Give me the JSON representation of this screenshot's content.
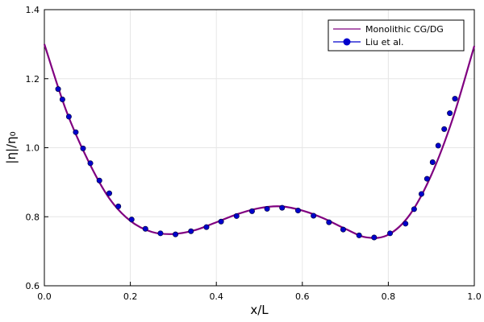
{
  "chart_data": {
    "type": "line",
    "xlabel": "x/L",
    "ylabel": "|η|/η₀",
    "xlim": [
      0,
      1
    ],
    "ylim": [
      0.6,
      1.4
    ],
    "xticks": [
      0.0,
      0.2,
      0.4,
      0.6,
      0.8,
      1.0
    ],
    "xtick_labels": [
      "0.0",
      "0.2",
      "0.4",
      "0.6",
      "0.8",
      "1.0"
    ],
    "yticks": [
      0.6,
      0.8,
      1.0,
      1.2,
      1.4
    ],
    "ytick_labels": [
      "0.6",
      "0.8",
      "1.0",
      "1.2",
      "1.4"
    ],
    "grid": true,
    "legend_position": "top-right",
    "series": [
      {
        "name": "Monolithic CG/DG",
        "kind": "line",
        "color": "#800080",
        "x": [
          0.0,
          0.05,
          0.1,
          0.15,
          0.2,
          0.25,
          0.3,
          0.35,
          0.4,
          0.45,
          0.5,
          0.55,
          0.6,
          0.65,
          0.7,
          0.75,
          0.8,
          0.85,
          0.9,
          0.95,
          1.0
        ],
        "y": [
          1.3,
          1.11,
          0.967,
          0.855,
          0.788,
          0.756,
          0.75,
          0.761,
          0.784,
          0.808,
          0.825,
          0.83,
          0.818,
          0.795,
          0.765,
          0.74,
          0.748,
          0.806,
          0.921,
          1.085,
          1.295
        ]
      },
      {
        "name": "Liu et al.",
        "kind": "scatter",
        "color": "#0000cc",
        "x": [
          0.032,
          0.042,
          0.057,
          0.073,
          0.09,
          0.107,
          0.128,
          0.151,
          0.172,
          0.203,
          0.235,
          0.27,
          0.305,
          0.341,
          0.377,
          0.411,
          0.447,
          0.483,
          0.518,
          0.553,
          0.59,
          0.626,
          0.662,
          0.695,
          0.732,
          0.767,
          0.804,
          0.84,
          0.86,
          0.877,
          0.89,
          0.903,
          0.916,
          0.93,
          0.943,
          0.955
        ],
        "y": [
          1.17,
          1.14,
          1.09,
          1.045,
          0.998,
          0.955,
          0.905,
          0.868,
          0.83,
          0.792,
          0.765,
          0.752,
          0.749,
          0.758,
          0.77,
          0.786,
          0.802,
          0.816,
          0.823,
          0.826,
          0.818,
          0.803,
          0.784,
          0.763,
          0.746,
          0.74,
          0.752,
          0.78,
          0.822,
          0.866,
          0.91,
          0.958,
          1.006,
          1.054,
          1.1,
          1.142
        ]
      }
    ]
  }
}
